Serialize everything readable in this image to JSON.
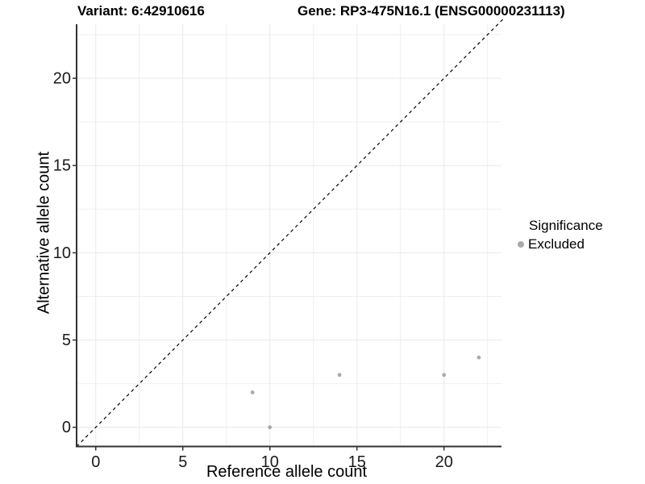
{
  "titles": {
    "left": "Variant: 6:42910616",
    "right": "Gene: RP3-475N16.1 (ENSG00000231113)"
  },
  "chart_data": {
    "type": "scatter",
    "xlabel": "Reference allele count",
    "ylabel": "Alternative allele count",
    "xlim": [
      -1.1,
      23.3
    ],
    "ylim": [
      -1.1,
      23.1
    ],
    "x_ticks": [
      0,
      5,
      10,
      15,
      20
    ],
    "y_ticks": [
      0,
      5,
      10,
      15,
      20
    ],
    "x_minor_ticks": [
      2.5,
      7.5,
      12.5,
      17.5,
      22.5
    ],
    "y_minor_ticks": [
      2.5,
      7.5,
      12.5,
      17.5,
      22.5
    ],
    "grid": true,
    "diagonal_line": {
      "style": "dashed",
      "from": [
        -1.1,
        -1.1
      ],
      "to": [
        23.4,
        23.4
      ],
      "color": "#000000"
    },
    "series": [
      {
        "name": "Excluded",
        "color": "#aaaaaa",
        "points": [
          [
            9,
            2
          ],
          [
            10,
            0
          ],
          [
            14,
            3
          ],
          [
            20,
            3
          ],
          [
            22,
            4
          ]
        ]
      }
    ],
    "legend": {
      "title": "Significance",
      "position": "right",
      "items": [
        {
          "label": "Excluded",
          "color": "#aaaaaa"
        }
      ]
    }
  },
  "colors": {
    "background": "#ffffff",
    "grid_major": "#e9e9e9",
    "grid_minor": "#efefef",
    "axis_line": "#333333",
    "tick_mark": "#333333",
    "tick_label": "#1a1a1a",
    "point": "#aaaaaa",
    "diagonal": "#000000",
    "text": "#000000"
  }
}
